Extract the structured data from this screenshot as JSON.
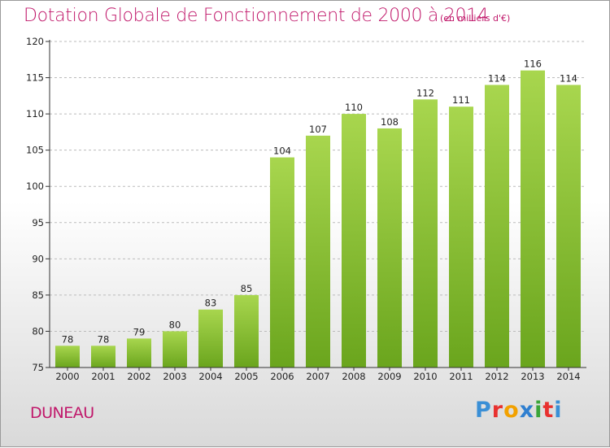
{
  "title": "Dotation Globale de Fonctionnement de 2000 à 2014",
  "subtitle": "(en milliers d'€)",
  "commune": "DUNEAU",
  "logo": {
    "letters": [
      "P",
      "r",
      "o",
      "x",
      "i",
      "t",
      "i"
    ],
    "colors": [
      "#3a8fd6",
      "#e8312f",
      "#f2a100",
      "#2f7fd0",
      "#3aa53a",
      "#e8312f",
      "#3a8fd6"
    ]
  },
  "colors": {
    "accent": "#c0176a",
    "bar_light": "#a8d64e",
    "bar_dark": "#6aa51d",
    "axis": "#333333",
    "grid": "#bbbbbb"
  },
  "chart_data": {
    "type": "bar",
    "title": "Dotation Globale de Fonctionnement de 2000 à 2014",
    "subtitle": "(en milliers d'€)",
    "categories": [
      "2000",
      "2001",
      "2002",
      "2003",
      "2004",
      "2005",
      "2006",
      "2007",
      "2008",
      "2009",
      "2010",
      "2011",
      "2012",
      "2013",
      "2014"
    ],
    "values": [
      78,
      78,
      79,
      80,
      83,
      85,
      104,
      107,
      110,
      108,
      112,
      111,
      114,
      116,
      114
    ],
    "ylim": [
      75,
      120
    ],
    "yticks": [
      75,
      80,
      85,
      90,
      95,
      100,
      105,
      110,
      115,
      120
    ],
    "grid": "horizontal dashed",
    "legend": "none"
  }
}
